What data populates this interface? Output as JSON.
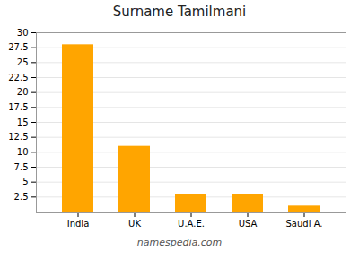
{
  "chart_data": {
    "type": "bar",
    "title": "Surname Tamilmani",
    "categories": [
      "India",
      "UK",
      "U.A.E.",
      "USA",
      "Saudi A."
    ],
    "values": [
      28,
      11,
      3,
      3,
      1
    ],
    "color": "#FFA500",
    "ylim": [
      0,
      30
    ],
    "yticks": [
      2.5,
      5,
      7.5,
      10,
      12.5,
      15,
      17.5,
      20,
      22.5,
      25,
      27.5,
      30
    ],
    "grid": true,
    "caption": "namespedia.com"
  }
}
